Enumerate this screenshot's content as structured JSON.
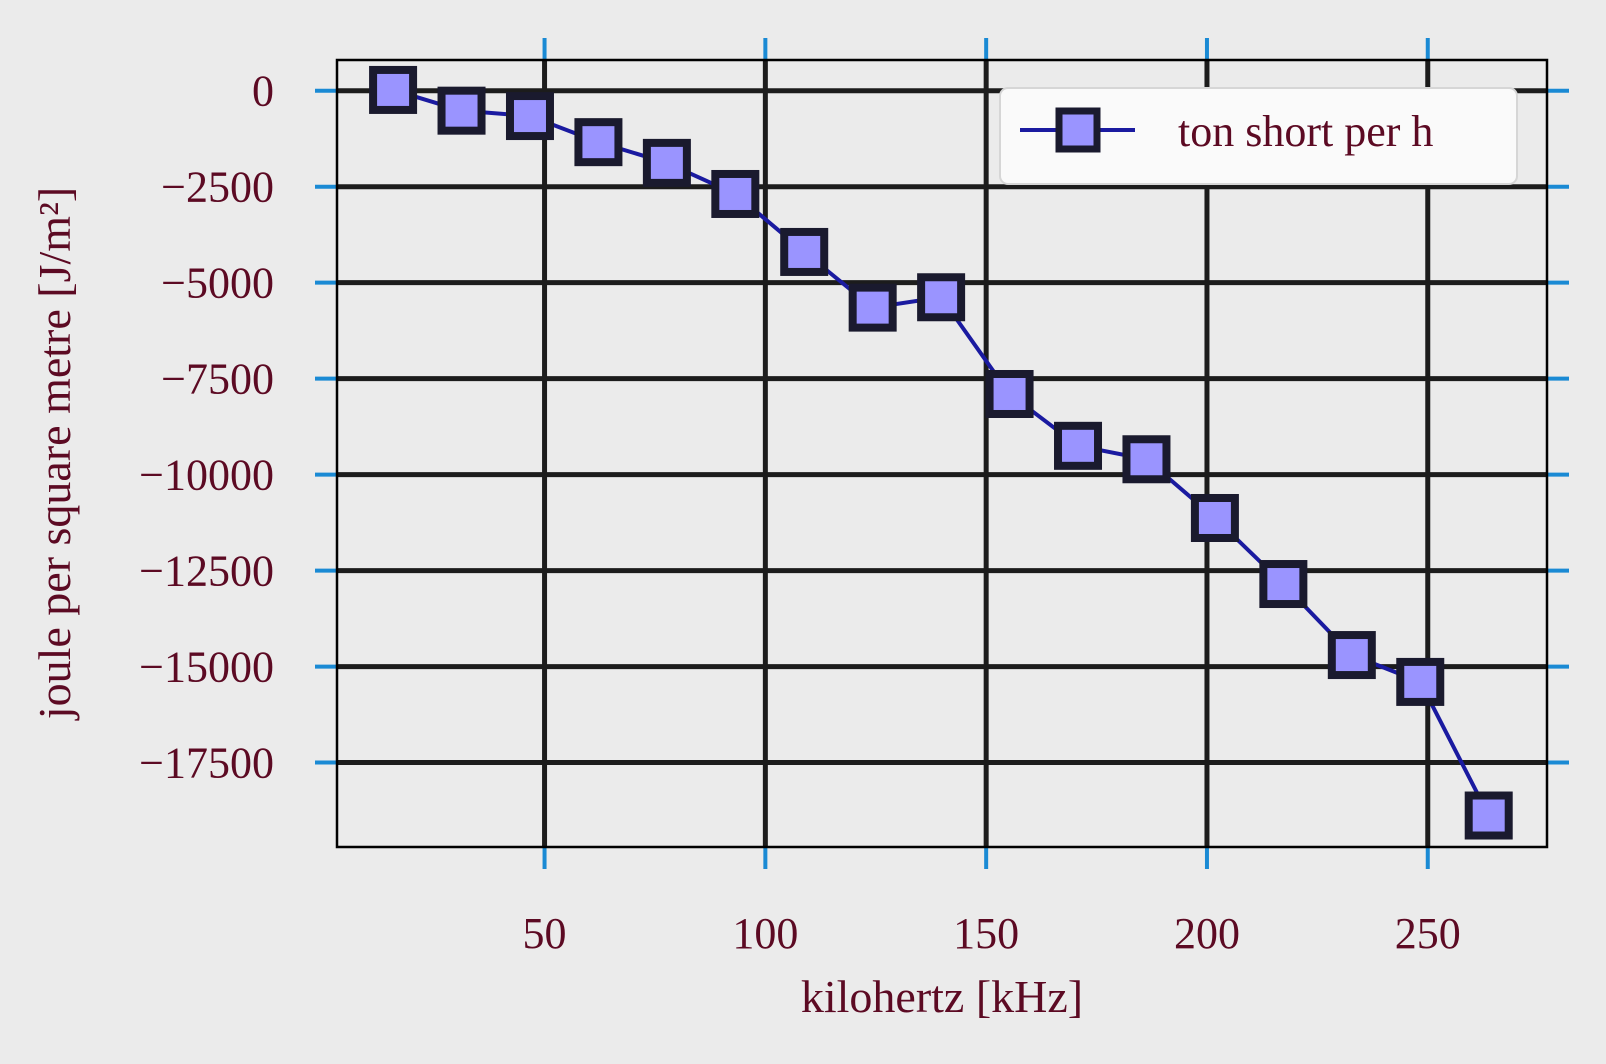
{
  "chart_data": {
    "type": "line",
    "xlabel": "kilohertz [kHz]",
    "ylabel": "joule per square metre [J/m²]",
    "xlim": [
      3,
      277
    ],
    "ylim": [
      -19700,
      800
    ],
    "xticks": [
      50,
      100,
      150,
      200,
      250
    ],
    "xtick_labels": [
      "50",
      "100",
      "150",
      "200",
      "250"
    ],
    "yticks": [
      0,
      -2500,
      -5000,
      -7500,
      -10000,
      -12500,
      -15000,
      -17500
    ],
    "ytick_labels": [
      "0",
      "−2500",
      "−5000",
      "−7500",
      "−10000",
      "−12500",
      "−15000",
      "−17500"
    ],
    "grid": true,
    "legend": "top-right",
    "series": [
      {
        "name": "ton short per h",
        "marker": "square",
        "line_color": "#1a1aa0",
        "marker_fill": "#9a94ff",
        "marker_edge": "#1a1a2e",
        "x": [
          15.7,
          31.2,
          46.7,
          62.2,
          77.7,
          93.2,
          108.8,
          124.3,
          139.8,
          155.3,
          170.8,
          186.3,
          201.8,
          217.3,
          232.8,
          248.3,
          263.8
        ],
        "y": [
          20,
          -520,
          -660,
          -1340,
          -1880,
          -2690,
          -4200,
          -5650,
          -5380,
          -7900,
          -9250,
          -9600,
          -11130,
          -12850,
          -14700,
          -15400,
          -18880
        ]
      }
    ]
  },
  "colors": {
    "background": "#ebebeb",
    "grid": "#1c1c1c",
    "tick_marks": "#1a8ad4",
    "text": "#5c0a23"
  }
}
